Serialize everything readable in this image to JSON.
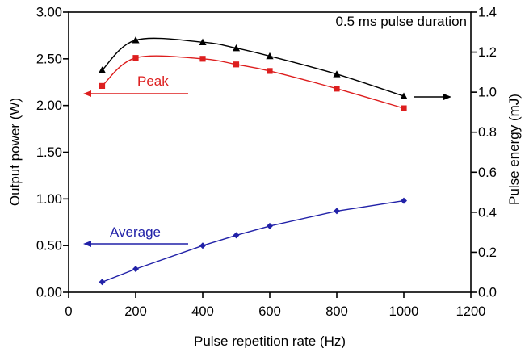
{
  "figure": {
    "background": "#ffffff",
    "axis_color": "#000000"
  },
  "chart_data": {
    "type": "line",
    "annotation": "0.5 ms pulse duration",
    "xlabel": "Pulse repetition rate (Hz)",
    "ylabel_left": "Output power (W)",
    "ylabel_right": "Pulse energy (mJ)",
    "xlim": [
      0,
      1200
    ],
    "ylim_left": [
      0,
      3
    ],
    "ylim_right": [
      0,
      1.4
    ],
    "xticks": [
      0,
      200,
      400,
      600,
      800,
      1000,
      1200
    ],
    "yticks_left": [
      0,
      0.5,
      1,
      1.5,
      2,
      2.5,
      3
    ],
    "yticks_right": [
      0,
      0.2,
      0.4,
      0.6,
      0.8,
      1,
      1.2,
      1.4
    ],
    "grid": false,
    "legend": "none",
    "x": [
      100,
      200,
      400,
      500,
      600,
      800,
      1000
    ],
    "series": [
      {
        "name": "Pulse energy",
        "axis": "right",
        "color": "#000000",
        "marker": "triangle",
        "smooth": true,
        "values": [
          1.11,
          1.26,
          1.25,
          1.22,
          1.18,
          1.09,
          0.98
        ]
      },
      {
        "name": "Peak output power",
        "axis": "left",
        "color": "#dd1e1e",
        "marker": "square",
        "smooth": true,
        "values": [
          2.21,
          2.51,
          2.5,
          2.44,
          2.37,
          2.18,
          1.97
        ]
      },
      {
        "name": "Average output power",
        "axis": "left",
        "color": "#2121a8",
        "marker": "diamond",
        "smooth": false,
        "values": [
          0.11,
          0.25,
          0.5,
          0.61,
          0.71,
          0.87,
          0.98
        ]
      }
    ],
    "labels": {
      "peak": {
        "text": "Peak",
        "color": "#dd1e1e"
      },
      "average": {
        "text": "Average",
        "color": "#2121a8"
      }
    },
    "arrows": [
      {
        "name": "peak-arrow",
        "color": "#dd1e1e",
        "direction": "left"
      },
      {
        "name": "average-arrow",
        "color": "#2121a8",
        "direction": "left"
      },
      {
        "name": "pulse-energy-arrow",
        "color": "#000000",
        "direction": "right"
      }
    ]
  }
}
